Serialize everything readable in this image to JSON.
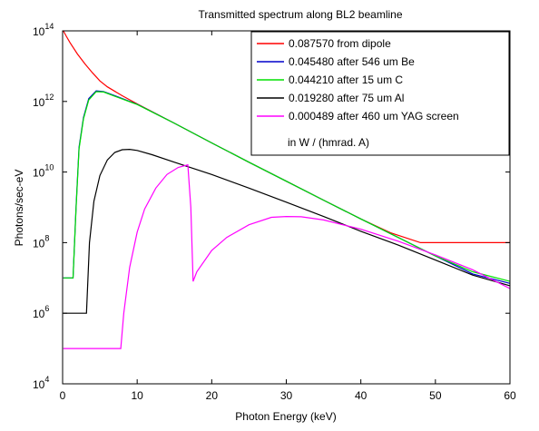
{
  "chart_data": {
    "type": "line",
    "title": "Transmitted spectrum along BL2 beamline",
    "xlabel": "Photon Energy  (keV)",
    "ylabel": "Photons/sec-eV",
    "xlim": [
      0,
      60
    ],
    "ylim": [
      10000,
      100000000000000
    ],
    "yscale": "log",
    "x_ticks": [
      0,
      10,
      20,
      30,
      40,
      50,
      60
    ],
    "x_tick_labels": [
      "0",
      "10",
      "20",
      "30",
      "40",
      "50",
      "60"
    ],
    "y_ticks": [
      10000,
      1000000,
      100000000,
      10000000000,
      1000000000000,
      100000000000000
    ],
    "y_tick_base": "10",
    "y_tick_exponents": [
      "4",
      "6",
      "8",
      "10",
      "12",
      "14"
    ],
    "grid": false,
    "legend_position": "top-right",
    "legend_note": "in W / (hmrad. A)",
    "series": [
      {
        "name": "0.087570 from dipole",
        "color": "#ff0000",
        "points": [
          [
            0.1,
            100000000000000.0
          ],
          [
            0.5,
            70000000000000.0
          ],
          [
            1,
            46000000000000.0
          ],
          [
            2,
            22000000000000.0
          ],
          [
            3,
            11500000000000.0
          ],
          [
            4,
            6500000000000.0
          ],
          [
            5,
            3800000000000.0
          ],
          [
            6,
            2600000000000.0
          ],
          [
            8,
            1450000000000.0
          ],
          [
            10,
            850000000000.0
          ],
          [
            15,
            240000000000.0
          ],
          [
            20,
            67000000000.0
          ],
          [
            25,
            19000000000.0
          ],
          [
            30,
            5500000000.0
          ],
          [
            35,
            1600000000.0
          ],
          [
            40,
            470000000.0
          ],
          [
            44,
            190000000.0
          ],
          [
            48,
            100000000.0
          ],
          [
            60,
            100000000.0
          ]
        ]
      },
      {
        "name": "0.045480 after 546 um Be",
        "color": "#0000cc",
        "points": [
          [
            0.1,
            10000000.0
          ],
          [
            1.4,
            10000000.0
          ],
          [
            1.8,
            1000000000.0
          ],
          [
            2.2,
            50000000000.0
          ],
          [
            2.8,
            350000000000.0
          ],
          [
            3.5,
            1200000000000.0
          ],
          [
            4.5,
            2000000000000.0
          ],
          [
            5.5,
            1900000000000.0
          ],
          [
            7,
            1450000000000.0
          ],
          [
            10,
            830000000000.0
          ],
          [
            15,
            240000000000.0
          ],
          [
            20,
            67000000000.0
          ],
          [
            25,
            19000000000.0
          ],
          [
            30,
            5500000000.0
          ],
          [
            35,
            1600000000.0
          ],
          [
            40,
            470000000.0
          ],
          [
            45,
            140000000.0
          ],
          [
            50,
            42000000.0
          ],
          [
            55,
            13000000.0
          ],
          [
            60,
            7000000.0
          ]
        ]
      },
      {
        "name": "0.044210 after 15 um C",
        "color": "#00e000",
        "points": [
          [
            0.1,
            10000000.0
          ],
          [
            1.4,
            10000000.0
          ],
          [
            1.8,
            900000000.0
          ],
          [
            2.2,
            45000000000.0
          ],
          [
            2.8,
            320000000000.0
          ],
          [
            3.5,
            1100000000000.0
          ],
          [
            4.5,
            1900000000000.0
          ],
          [
            5.5,
            1850000000000.0
          ],
          [
            7,
            1400000000000.0
          ],
          [
            10,
            820000000000.0
          ],
          [
            15,
            240000000000.0
          ],
          [
            20,
            67000000000.0
          ],
          [
            25,
            19000000000.0
          ],
          [
            30,
            5500000000.0
          ],
          [
            35,
            1600000000.0
          ],
          [
            40,
            470000000.0
          ],
          [
            45,
            140000000.0
          ],
          [
            50,
            42000000.0
          ],
          [
            55,
            15000000.0
          ],
          [
            60,
            8000000.0
          ]
        ]
      },
      {
        "name": "0.019280 after 75 um Al",
        "color": "#000000",
        "points": [
          [
            0.1,
            1000000.0
          ],
          [
            3.2,
            1000000.0
          ],
          [
            3.6,
            100000000.0
          ],
          [
            4.2,
            1500000000.0
          ],
          [
            5,
            8000000000.0
          ],
          [
            6,
            22000000000.0
          ],
          [
            7,
            36000000000.0
          ],
          [
            8,
            43000000000.0
          ],
          [
            9,
            44000000000.0
          ],
          [
            10,
            41000000000.0
          ],
          [
            12,
            31000000000.0
          ],
          [
            15,
            19000000000.0
          ],
          [
            20,
            8500000000.0
          ],
          [
            25,
            3500000000.0
          ],
          [
            30,
            1400000000.0
          ],
          [
            35,
            550000000.0
          ],
          [
            40,
            210000000.0
          ],
          [
            45,
            85000000.0
          ],
          [
            50,
            32000000.0
          ],
          [
            55,
            12000000.0
          ],
          [
            60,
            6000000.0
          ]
        ]
      },
      {
        "name": "0.000489 after 460 um YAG screen",
        "color": "#ff00ff",
        "points": [
          [
            0.1,
            100000.0
          ],
          [
            7.8,
            100000.0
          ],
          [
            8.2,
            1000000.0
          ],
          [
            9,
            20000000.0
          ],
          [
            10,
            200000000.0
          ],
          [
            11,
            900000000.0
          ],
          [
            12.5,
            3500000000.0
          ],
          [
            14,
            8500000000.0
          ],
          [
            15.5,
            13500000000.0
          ],
          [
            16.8,
            16000000000.0
          ],
          [
            17.2,
            1000000000.0
          ],
          [
            17.5,
            8000000.0
          ],
          [
            18,
            15000000.0
          ],
          [
            20,
            60000000.0
          ],
          [
            22,
            140000000.0
          ],
          [
            25,
            320000000.0
          ],
          [
            28,
            520000000.0
          ],
          [
            30,
            550000000.0
          ],
          [
            32,
            540000000.0
          ],
          [
            35,
            440000000.0
          ],
          [
            40,
            240000000.0
          ],
          [
            45,
            110000000.0
          ],
          [
            50,
            45000000.0
          ],
          [
            55,
            17000000.0
          ],
          [
            60,
            5000000.0
          ]
        ]
      }
    ]
  }
}
